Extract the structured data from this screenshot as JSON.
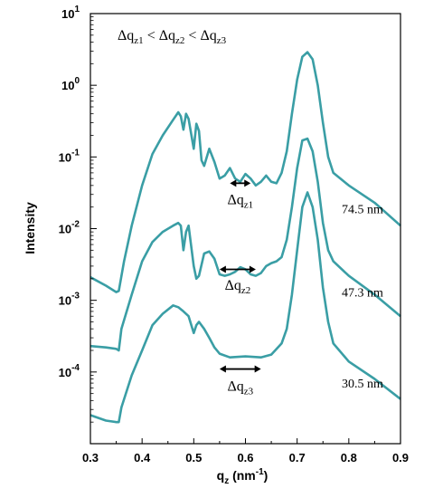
{
  "chart_data": {
    "type": "line",
    "x_label_main": "q",
    "x_label_sub": "z",
    "x_label_unit_open": " (nm",
    "x_label_unit_exp": "-1",
    "x_label_unit_close": ")",
    "ylabel": "Intensity",
    "xlim": [
      0.3,
      0.9
    ],
    "ylim": [
      1e-05,
      10
    ],
    "y_scale": "log",
    "x_ticks": [
      "0.3",
      "0.4",
      "0.5",
      "0.6",
      "0.7",
      "0.8",
      "0.9"
    ],
    "y_ticks": [
      {
        "base": "10",
        "exp": "1"
      },
      {
        "base": "10",
        "exp": "0"
      },
      {
        "base": "10",
        "exp": "-1"
      },
      {
        "base": "10",
        "exp": "-2"
      },
      {
        "base": "10",
        "exp": "-3"
      },
      {
        "base": "10",
        "exp": "-4"
      }
    ],
    "line_color": "#3a9ea5",
    "relation": {
      "delta": "Δq",
      "sub1": "z1",
      "sub2": "z2",
      "sub3": "z3",
      "op": "<"
    },
    "series": [
      {
        "name": "74.5 nm",
        "points": [
          [
            0.3,
            0.0021
          ],
          [
            0.33,
            0.0016
          ],
          [
            0.35,
            0.0013
          ],
          [
            0.355,
            0.00135
          ],
          [
            0.365,
            0.0035
          ],
          [
            0.38,
            0.011
          ],
          [
            0.4,
            0.04
          ],
          [
            0.42,
            0.11
          ],
          [
            0.44,
            0.2
          ],
          [
            0.46,
            0.33
          ],
          [
            0.47,
            0.42
          ],
          [
            0.475,
            0.37
          ],
          [
            0.48,
            0.24
          ],
          [
            0.485,
            0.4
          ],
          [
            0.49,
            0.34
          ],
          [
            0.5,
            0.13
          ],
          [
            0.505,
            0.29
          ],
          [
            0.51,
            0.23
          ],
          [
            0.515,
            0.09
          ],
          [
            0.52,
            0.075
          ],
          [
            0.53,
            0.13
          ],
          [
            0.54,
            0.085
          ],
          [
            0.55,
            0.05
          ],
          [
            0.56,
            0.055
          ],
          [
            0.57,
            0.07
          ],
          [
            0.58,
            0.05
          ],
          [
            0.59,
            0.045
          ],
          [
            0.6,
            0.058
          ],
          [
            0.61,
            0.05
          ],
          [
            0.62,
            0.04
          ],
          [
            0.63,
            0.045
          ],
          [
            0.64,
            0.055
          ],
          [
            0.65,
            0.045
          ],
          [
            0.66,
            0.043
          ],
          [
            0.67,
            0.06
          ],
          [
            0.68,
            0.12
          ],
          [
            0.69,
            0.4
          ],
          [
            0.7,
            1.2
          ],
          [
            0.71,
            2.5
          ],
          [
            0.72,
            2.9
          ],
          [
            0.73,
            2.3
          ],
          [
            0.74,
            1.0
          ],
          [
            0.75,
            0.3
          ],
          [
            0.76,
            0.1
          ],
          [
            0.77,
            0.06
          ],
          [
            0.8,
            0.04
          ],
          [
            0.85,
            0.023
          ],
          [
            0.9,
            0.011
          ]
        ]
      },
      {
        "name": "47.3 nm",
        "points": [
          [
            0.3,
            0.00023
          ],
          [
            0.33,
            0.00022
          ],
          [
            0.35,
            0.00021
          ],
          [
            0.355,
            0.0002
          ],
          [
            0.36,
            0.0004
          ],
          [
            0.38,
            0.0012
          ],
          [
            0.4,
            0.0035
          ],
          [
            0.42,
            0.0065
          ],
          [
            0.44,
            0.009
          ],
          [
            0.46,
            0.011
          ],
          [
            0.47,
            0.012
          ],
          [
            0.475,
            0.011
          ],
          [
            0.48,
            0.005
          ],
          [
            0.485,
            0.009
          ],
          [
            0.49,
            0.011
          ],
          [
            0.5,
            0.003
          ],
          [
            0.505,
            0.002
          ],
          [
            0.51,
            0.0022
          ],
          [
            0.52,
            0.0045
          ],
          [
            0.53,
            0.0048
          ],
          [
            0.54,
            0.0038
          ],
          [
            0.55,
            0.0023
          ],
          [
            0.56,
            0.0022
          ],
          [
            0.57,
            0.0023
          ],
          [
            0.58,
            0.0025
          ],
          [
            0.59,
            0.0029
          ],
          [
            0.6,
            0.0027
          ],
          [
            0.61,
            0.0023
          ],
          [
            0.62,
            0.0022
          ],
          [
            0.63,
            0.0024
          ],
          [
            0.64,
            0.003
          ],
          [
            0.65,
            0.0033
          ],
          [
            0.66,
            0.0035
          ],
          [
            0.67,
            0.004
          ],
          [
            0.68,
            0.007
          ],
          [
            0.69,
            0.02
          ],
          [
            0.7,
            0.07
          ],
          [
            0.71,
            0.17
          ],
          [
            0.72,
            0.18
          ],
          [
            0.73,
            0.12
          ],
          [
            0.74,
            0.045
          ],
          [
            0.75,
            0.012
          ],
          [
            0.76,
            0.005
          ],
          [
            0.77,
            0.0035
          ],
          [
            0.8,
            0.0022
          ],
          [
            0.85,
            0.0012
          ],
          [
            0.9,
            0.0006
          ]
        ]
      },
      {
        "name": "30.5 nm",
        "points": [
          [
            0.3,
            2.5e-05
          ],
          [
            0.33,
            2.1e-05
          ],
          [
            0.35,
            2e-05
          ],
          [
            0.355,
            2e-05
          ],
          [
            0.36,
            3.2e-05
          ],
          [
            0.38,
            9e-05
          ],
          [
            0.4,
            0.0002
          ],
          [
            0.42,
            0.00045
          ],
          [
            0.44,
            0.00065
          ],
          [
            0.46,
            0.00085
          ],
          [
            0.47,
            0.0008
          ],
          [
            0.48,
            0.0007
          ],
          [
            0.49,
            0.0006
          ],
          [
            0.5,
            0.00035
          ],
          [
            0.505,
            0.00045
          ],
          [
            0.51,
            0.0005
          ],
          [
            0.52,
            0.0004
          ],
          [
            0.53,
            0.0003
          ],
          [
            0.54,
            0.00022
          ],
          [
            0.55,
            0.00018
          ],
          [
            0.57,
            0.00016
          ],
          [
            0.6,
            0.000165
          ],
          [
            0.63,
            0.00016
          ],
          [
            0.65,
            0.000175
          ],
          [
            0.67,
            0.00025
          ],
          [
            0.68,
            0.0004
          ],
          [
            0.69,
            0.0012
          ],
          [
            0.7,
            0.005
          ],
          [
            0.71,
            0.02
          ],
          [
            0.72,
            0.032
          ],
          [
            0.73,
            0.02
          ],
          [
            0.74,
            0.007
          ],
          [
            0.75,
            0.0015
          ],
          [
            0.76,
            0.0005
          ],
          [
            0.77,
            0.00025
          ],
          [
            0.8,
            0.00014
          ],
          [
            0.85,
            8e-05
          ],
          [
            0.9,
            4.2e-05
          ]
        ]
      }
    ],
    "arrows": [
      {
        "label_sub": "z1",
        "x1": 0.57,
        "x2": 0.61,
        "y": 0.043,
        "label_y": 0.022
      },
      {
        "label_sub": "z2",
        "x1": 0.55,
        "x2": 0.62,
        "y": 0.0027,
        "label_y": 0.0014
      },
      {
        "label_sub": "z3",
        "x1": 0.55,
        "x2": 0.63,
        "y": 0.00011,
        "label_y": 5.5e-05
      }
    ]
  }
}
